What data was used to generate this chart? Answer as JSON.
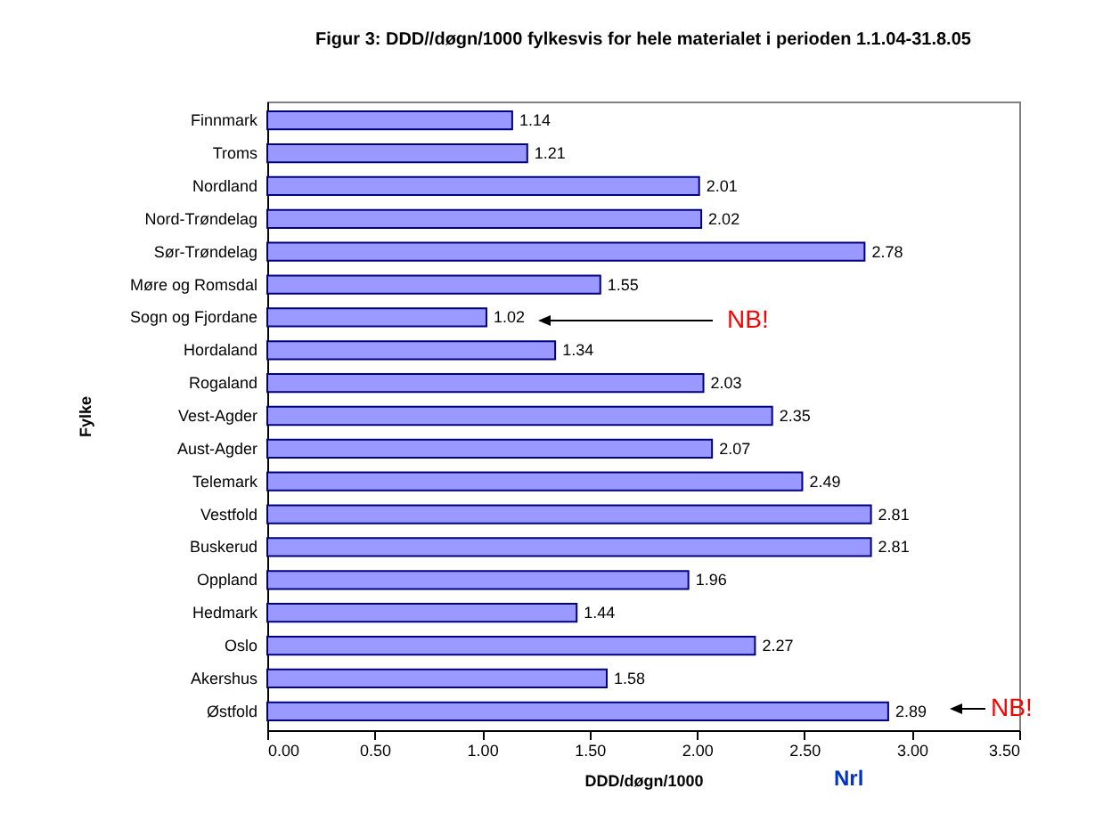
{
  "chart_data": {
    "type": "bar",
    "orientation": "horizontal",
    "title": "Figur 3: DDD//døgn/1000 fylkesvis for hele materialet i perioden 1.1.04-31.8.05",
    "xlabel": "DDD/døgn/1000",
    "ylabel": "Fylke",
    "categories": [
      "Finnmark",
      "Troms",
      "Nordland",
      "Nord-Trøndelag",
      "Sør-Trøndelag",
      "Møre og Romsdal",
      "Sogn og Fjordane",
      "Hordaland",
      "Rogaland",
      "Vest-Agder",
      "Aust-Agder",
      "Telemark",
      "Vestfold",
      "Buskerud",
      "Oppland",
      "Hedmark",
      "Oslo",
      "Akershus",
      "Østfold"
    ],
    "values": [
      1.14,
      1.21,
      2.01,
      2.02,
      2.78,
      1.55,
      1.02,
      1.34,
      2.03,
      2.35,
      2.07,
      2.49,
      2.81,
      2.81,
      1.96,
      1.44,
      2.27,
      1.58,
      2.89
    ],
    "color": "#9999ff",
    "data_labels": true,
    "grid": false,
    "xlim": [
      0,
      3.5
    ],
    "xticks": [
      {
        "value": 0,
        "label": "0.00"
      },
      {
        "value": 0.5,
        "label": "0.50"
      },
      {
        "value": 1,
        "label": "1.00"
      },
      {
        "value": 1.5,
        "label": "1.50"
      },
      {
        "value": 2,
        "label": "2.00"
      },
      {
        "value": 2.5,
        "label": "2.50"
      },
      {
        "value": 3,
        "label": "3.00"
      },
      {
        "value": 3.5,
        "label": "3.50"
      }
    ],
    "annotations": [
      "NB!",
      "NB!",
      "Nrl"
    ]
  }
}
